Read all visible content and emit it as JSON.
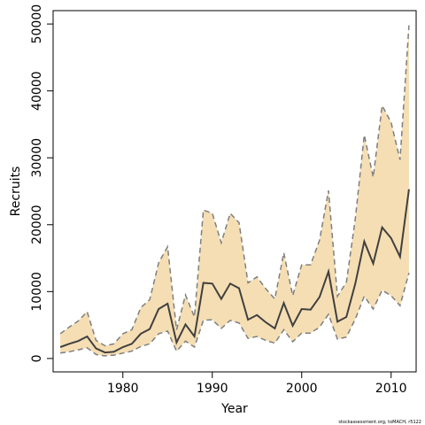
{
  "chart_data": {
    "type": "area",
    "xlabel": "Year",
    "ylabel": "Recruits",
    "xlim": [
      1972.2,
      2012.8
    ],
    "ylim": [
      -2000,
      52000
    ],
    "x_ticks": [
      1980,
      1990,
      2000,
      2010
    ],
    "x_tick_labels": [
      "1980",
      "1990",
      "2000",
      "2010"
    ],
    "y_ticks": [
      0,
      10000,
      20000,
      30000,
      40000,
      50000
    ],
    "y_tick_labels": [
      "0",
      "10000",
      "20000",
      "30000",
      "40000",
      "50000"
    ],
    "grid": false,
    "colors": {
      "band": "#f5deb3",
      "bounds": "#7f7f7f",
      "estimate": "#404040",
      "axis": "#000000"
    },
    "years": [
      1973,
      1974,
      1975,
      1976,
      1977,
      1978,
      1979,
      1980,
      1981,
      1982,
      1983,
      1984,
      1985,
      1986,
      1987,
      1988,
      1989,
      1990,
      1991,
      1992,
      1993,
      1994,
      1995,
      1996,
      1997,
      1998,
      1999,
      2000,
      2001,
      2002,
      2003,
      2004,
      2005,
      2006,
      2007,
      2008,
      2009,
      2010,
      2011,
      2012
    ],
    "series": [
      {
        "role": "upper",
        "values": [
          3700,
          4700,
          5600,
          7000,
          2700,
          1900,
          2200,
          3700,
          4300,
          7600,
          8800,
          14300,
          16700,
          4300,
          9500,
          6200,
          22200,
          21700,
          17300,
          21700,
          20300,
          11300,
          12200,
          10400,
          8900,
          15800,
          9400,
          14000,
          14000,
          17700,
          25100,
          9300,
          11400,
          20900,
          33400,
          27100,
          37800,
          35300,
          29700,
          49800
        ]
      },
      {
        "role": "estimate",
        "values": [
          1700,
          2200,
          2600,
          3300,
          1500,
          900,
          1000,
          1700,
          2200,
          3700,
          4400,
          7400,
          8200,
          2400,
          5100,
          3300,
          11300,
          11200,
          8900,
          11200,
          10500,
          5800,
          6500,
          5400,
          4500,
          8300,
          4900,
          7400,
          7300,
          9200,
          13000,
          5500,
          6200,
          11200,
          17500,
          14200,
          19600,
          18000,
          15200,
          25300
        ]
      },
      {
        "role": "lower",
        "values": [
          800,
          1000,
          1300,
          1600,
          600,
          400,
          500,
          800,
          1100,
          1800,
          2200,
          3700,
          4100,
          1100,
          2600,
          1700,
          5700,
          5800,
          4500,
          5700,
          5300,
          3000,
          3300,
          2700,
          2300,
          4300,
          2500,
          3800,
          3800,
          4700,
          6600,
          2900,
          3200,
          5900,
          9300,
          7400,
          10200,
          9400,
          7900,
          12800
        ]
      }
    ]
  },
  "credit_text": "stockassessment.org, toMACH, r5122"
}
